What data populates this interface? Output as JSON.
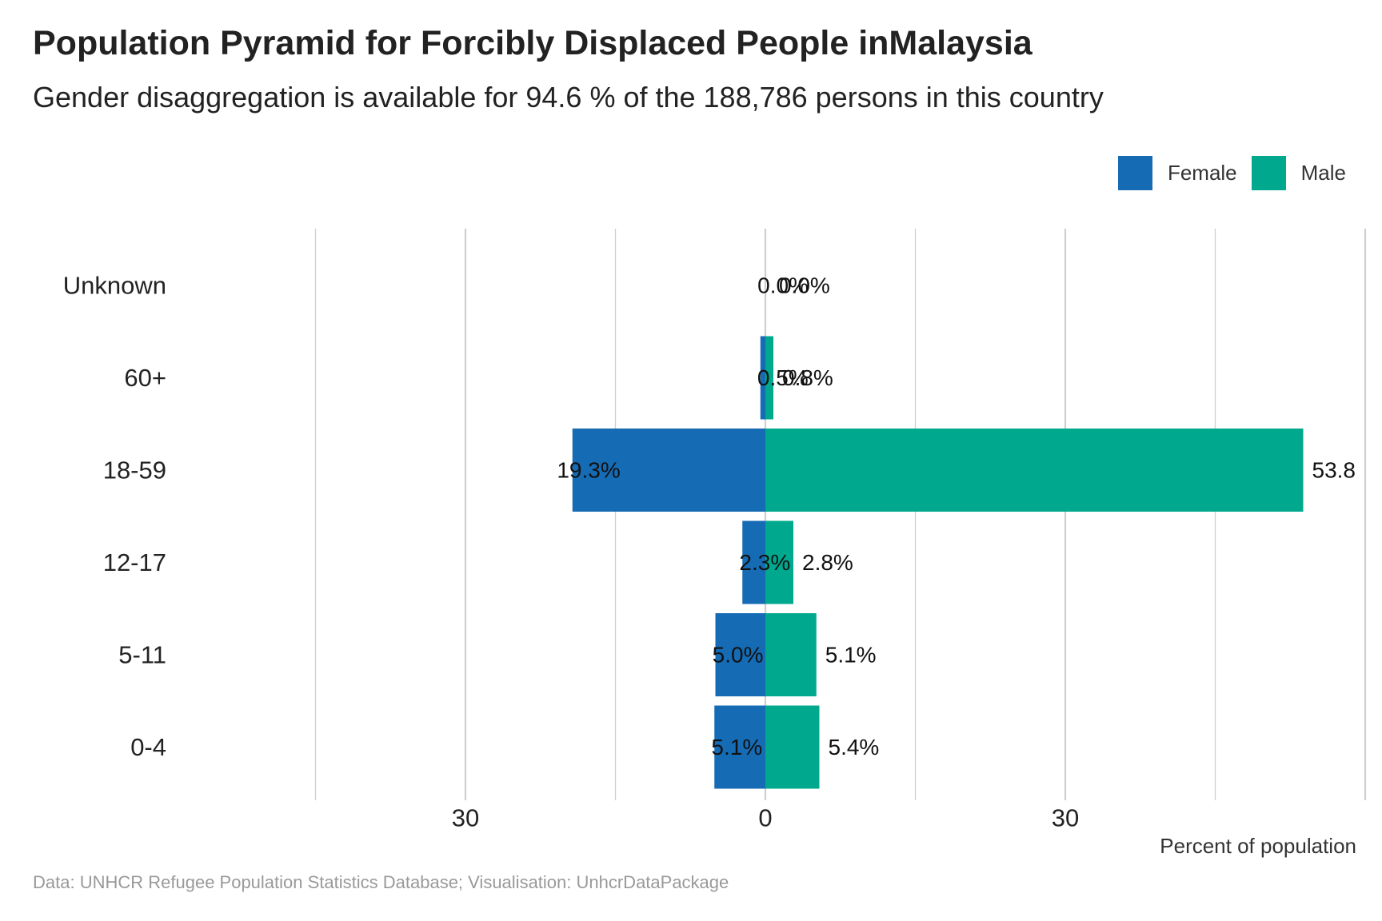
{
  "title": "Population Pyramid for Forcibly Displaced People inMalaysia",
  "subtitle": "Gender disaggregation is available for 94.6 % of the 188,786 persons in this country",
  "caption": "Data: UNHCR Refugee Population Statistics Database; Visualisation: UnhcrDataPackage",
  "colors": {
    "female": "#156bb4",
    "male": "#00a98e",
    "grid": "#cfcfcf"
  },
  "legend": {
    "female_label": "Female",
    "male_label": "Male",
    "placement": "top-right"
  },
  "chart_data": {
    "type": "bar",
    "orientation": "horizontal",
    "categories": [
      "Unknown",
      "60+",
      "18-59",
      "12-17",
      "5-11",
      "0-4"
    ],
    "series": [
      {
        "name": "Female",
        "values": [
          0.0,
          0.5,
          19.3,
          2.3,
          5.0,
          5.1
        ]
      },
      {
        "name": "Male",
        "values": [
          0.0,
          0.8,
          53.8,
          2.8,
          5.1,
          5.4
        ]
      }
    ],
    "data_labels": {
      "Female": [
        "0.0%",
        "0.5%",
        "19.3%",
        "2.3%",
        "5.0%",
        "5.1%"
      ],
      "Male": [
        "0.0%",
        "0.8%",
        "53.8",
        "2.8%",
        "5.1%",
        "5.4%"
      ]
    },
    "xlabel": "Percent of population",
    "ylabel": "",
    "xlim": [
      -45,
      60
    ],
    "xticks": [
      -30,
      0,
      30
    ],
    "xtick_labels": [
      "30",
      "0",
      "30"
    ],
    "grid": true
  }
}
